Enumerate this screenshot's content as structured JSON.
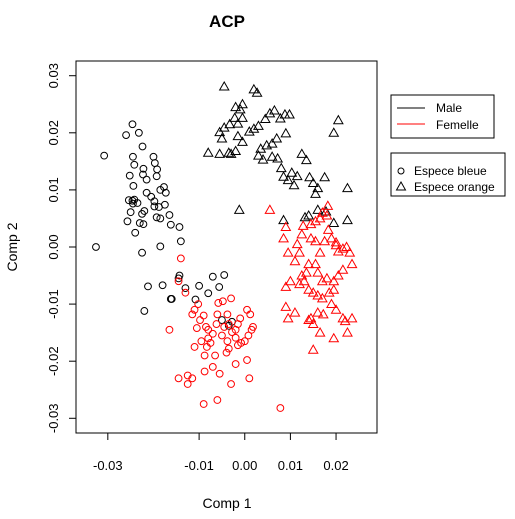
{
  "chart_data": {
    "type": "scatter",
    "title": "ACP",
    "xlabel": "Comp 1",
    "ylabel": "Comp 2",
    "xlim": [
      -0.035,
      0.027
    ],
    "ylim": [
      -0.031,
      0.031
    ],
    "x_ticks": [
      -0.03,
      -0.01,
      0.0,
      0.01,
      0.02
    ],
    "x_tick_labels": [
      "-0.03",
      "-0.01",
      "0.00",
      "0.01",
      "0.02"
    ],
    "y_ticks": [
      -0.03,
      -0.02,
      -0.01,
      0.0,
      0.01,
      0.02,
      0.03
    ],
    "y_tick_labels": [
      "-0.03",
      "-0.02",
      "-0.01",
      "0.00",
      "0.01",
      "0.02",
      "0.03"
    ],
    "grid": false,
    "colors": {
      "Male": "#000000",
      "Femelle": "#ff0000"
    },
    "legends": [
      {
        "placement": "top-right outside",
        "entries": [
          {
            "label": "Male",
            "symbol": "line",
            "color": "#000000"
          },
          {
            "label": "Femelle",
            "symbol": "line",
            "color": "#ff0000"
          }
        ]
      },
      {
        "placement": "right outside",
        "entries": [
          {
            "label": "Espece bleue",
            "symbol": "circle"
          },
          {
            "label": "Espece orange",
            "symbol": "triangle"
          }
        ]
      }
    ],
    "series": [
      {
        "sex": "Male",
        "species": "Espece bleue",
        "color": "#000000",
        "marker": "circle",
        "points": [
          [
            -0.0326,
            -0.0
          ],
          [
            -0.0308,
            0.016
          ],
          [
            -0.026,
            0.0196
          ],
          [
            -0.0246,
            0.0215
          ],
          [
            -0.0224,
            0.0176
          ],
          [
            -0.0232,
            0.02
          ],
          [
            -0.0245,
            0.0158
          ],
          [
            -0.0223,
            0.0127
          ],
          [
            -0.0222,
            0.0137
          ],
          [
            -0.0215,
            0.0118
          ],
          [
            -0.02,
            0.0158
          ],
          [
            -0.0197,
            0.0147
          ],
          [
            -0.0192,
            0.0136
          ],
          [
            -0.0193,
            0.0124
          ],
          [
            -0.0242,
            0.0144
          ],
          [
            -0.0252,
            0.0125
          ],
          [
            -0.0244,
            0.0107
          ],
          [
            -0.0254,
            0.0082
          ],
          [
            -0.0246,
            0.0081
          ],
          [
            -0.0242,
            0.0083
          ],
          [
            -0.0235,
            0.0077
          ],
          [
            -0.0245,
            0.0076
          ],
          [
            -0.025,
            0.0061
          ],
          [
            -0.0257,
            0.0045
          ],
          [
            -0.024,
            0.0025
          ],
          [
            -0.0225,
            0.0058
          ],
          [
            -0.023,
            0.0042
          ],
          [
            -0.0222,
            0.004
          ],
          [
            -0.022,
            0.0063
          ],
          [
            -0.0215,
            0.0095
          ],
          [
            -0.0205,
            0.0088
          ],
          [
            -0.0198,
            0.008
          ],
          [
            -0.0188,
            0.007
          ],
          [
            -0.0198,
            0.0071
          ],
          [
            -0.0185,
            0.01
          ],
          [
            -0.0177,
            0.0105
          ],
          [
            -0.0173,
            0.0095
          ],
          [
            -0.0175,
            0.0074
          ],
          [
            -0.0185,
            0.005
          ],
          [
            -0.0193,
            0.0052
          ],
          [
            -0.0162,
            0.0039
          ],
          [
            -0.0165,
            0.0056
          ],
          [
            -0.0143,
            0.0035
          ],
          [
            -0.014,
            0.001
          ],
          [
            -0.0185,
            0.0001
          ],
          [
            -0.0225,
            -0.001
          ],
          [
            -0.018,
            -0.0067
          ],
          [
            -0.0212,
            -0.0069
          ],
          [
            -0.022,
            -0.0112
          ],
          [
            -0.0162,
            -0.0091
          ],
          [
            -0.016,
            -0.0091
          ],
          [
            -0.0145,
            -0.0055
          ],
          [
            -0.0143,
            -0.005
          ],
          [
            -0.013,
            -0.0072
          ],
          [
            -0.0108,
            -0.0092
          ],
          [
            -0.01,
            -0.0068
          ],
          [
            -0.008,
            -0.0081
          ],
          [
            -0.007,
            -0.0052
          ],
          [
            -0.0056,
            -0.007
          ],
          [
            -0.0045,
            -0.0049
          ],
          [
            -0.005,
            -0.0128
          ],
          [
            -0.0035,
            -0.0138
          ],
          [
            -0.0028,
            -0.0131
          ]
        ]
      },
      {
        "sex": "Male",
        "species": "Espece orange",
        "color": "#000000",
        "marker": "triangle",
        "points": [
          [
            -0.0045,
            0.0281
          ],
          [
            0.002,
            0.0276
          ],
          [
            0.0027,
            0.027
          ],
          [
            -0.0005,
            0.025
          ],
          [
            -0.001,
            0.0241
          ],
          [
            -0.002,
            0.0245
          ],
          [
            -0.0005,
            0.0226
          ],
          [
            -0.0015,
            0.0216
          ],
          [
            -0.0022,
            0.0226
          ],
          [
            -0.0033,
            0.0215
          ],
          [
            -0.0045,
            0.0209
          ],
          [
            -0.0055,
            0.0201
          ],
          [
            -0.005,
            0.019
          ],
          [
            -0.0015,
            0.0194
          ],
          [
            -0.0005,
            0.0184
          ],
          [
            -0.002,
            0.0168
          ],
          [
            -0.003,
            0.0163
          ],
          [
            -0.0035,
            0.0165
          ],
          [
            -0.0055,
            0.0163
          ],
          [
            -0.008,
            0.0165
          ],
          [
            0.001,
            0.0202
          ],
          [
            0.002,
            0.0207
          ],
          [
            0.003,
            0.0212
          ],
          [
            0.0045,
            0.0224
          ],
          [
            0.0055,
            0.0234
          ],
          [
            0.0065,
            0.0239
          ],
          [
            0.0078,
            0.0225
          ],
          [
            0.0088,
            0.0232
          ],
          [
            0.0098,
            0.0232
          ],
          [
            0.009,
            0.0199
          ],
          [
            0.007,
            0.019
          ],
          [
            0.006,
            0.0181
          ],
          [
            0.0048,
            0.0178
          ],
          [
            0.0035,
            0.0172
          ],
          [
            0.003,
            0.016
          ],
          [
            0.004,
            0.0153
          ],
          [
            0.006,
            0.0158
          ],
          [
            0.0072,
            0.0155
          ],
          [
            0.008,
            0.0138
          ],
          [
            0.0085,
            0.0123
          ],
          [
            0.0095,
            0.0117
          ],
          [
            0.0103,
            0.013
          ],
          [
            0.0108,
            0.0108
          ],
          [
            0.0115,
            0.0124
          ],
          [
            0.0125,
            0.0163
          ],
          [
            0.0135,
            0.0152
          ],
          [
            0.0142,
            0.0122
          ],
          [
            0.015,
            0.0112
          ],
          [
            0.0155,
            0.0093
          ],
          [
            0.016,
            0.0103
          ],
          [
            0.0175,
            0.0122
          ],
          [
            0.0195,
            0.02
          ],
          [
            0.0205,
            0.0222
          ],
          [
            0.0225,
            0.0103
          ],
          [
            0.0225,
            0.0047
          ],
          [
            0.0195,
            0.0042
          ],
          [
            0.0178,
            0.0062
          ],
          [
            0.016,
            0.0065
          ],
          [
            0.014,
            0.0055
          ],
          [
            0.0132,
            0.0052
          ],
          [
            0.0085,
            0.0047
          ],
          [
            -0.0012,
            0.0065
          ]
        ]
      },
      {
        "sex": "Femelle",
        "species": "Espece bleue",
        "color": "#ff0000",
        "marker": "circle",
        "points": [
          [
            -0.0165,
            -0.0145
          ],
          [
            -0.014,
            -0.002
          ],
          [
            -0.0145,
            -0.006
          ],
          [
            -0.013,
            -0.008
          ],
          [
            -0.0145,
            -0.023
          ],
          [
            -0.0125,
            -0.0225
          ],
          [
            -0.011,
            -0.011
          ],
          [
            -0.0098,
            -0.0128
          ],
          [
            -0.0105,
            -0.0142
          ],
          [
            -0.0085,
            -0.014
          ],
          [
            -0.008,
            -0.0145
          ],
          [
            -0.008,
            -0.016
          ],
          [
            -0.0083,
            -0.0175
          ],
          [
            -0.0088,
            -0.019
          ],
          [
            -0.0075,
            -0.0168
          ],
          [
            -0.007,
            -0.0152
          ],
          [
            -0.0062,
            -0.0135
          ],
          [
            -0.006,
            -0.0118
          ],
          [
            -0.0058,
            -0.0098
          ],
          [
            -0.0048,
            -0.0095
          ],
          [
            -0.003,
            -0.009
          ],
          [
            -0.0038,
            -0.0118
          ],
          [
            -0.0045,
            -0.014
          ],
          [
            -0.005,
            -0.0155
          ],
          [
            -0.0038,
            -0.0165
          ],
          [
            -0.0035,
            -0.0135
          ],
          [
            -0.0028,
            -0.0149
          ],
          [
            -0.002,
            -0.0159
          ],
          [
            -0.0015,
            -0.0172
          ],
          [
            -0.0008,
            -0.0168
          ],
          [
            0.0,
            -0.0165
          ],
          [
            0.0008,
            -0.0155
          ],
          [
            0.0015,
            -0.0145
          ],
          [
            0.0018,
            -0.014
          ],
          [
            0.0012,
            -0.0118
          ],
          [
            0.0005,
            -0.011
          ],
          [
            -0.0015,
            -0.0135
          ],
          [
            -0.002,
            -0.0145
          ],
          [
            -0.004,
            -0.0185
          ],
          [
            -0.0065,
            -0.019
          ],
          [
            -0.0088,
            -0.0218
          ],
          [
            -0.0115,
            -0.023
          ],
          [
            -0.0125,
            -0.024
          ],
          [
            -0.009,
            -0.0275
          ],
          [
            -0.006,
            -0.0268
          ],
          [
            -0.003,
            -0.024
          ],
          [
            -0.002,
            -0.0205
          ],
          [
            0.0005,
            -0.0198
          ],
          [
            0.001,
            -0.023
          ],
          [
            -0.009,
            -0.012
          ],
          [
            -0.0115,
            -0.0118
          ],
          [
            -0.0095,
            -0.0165
          ],
          [
            -0.011,
            -0.0175
          ],
          [
            0.0078,
            -0.0282
          ],
          [
            -0.0035,
            -0.0178
          ],
          [
            -0.0055,
            -0.0222
          ],
          [
            -0.007,
            -0.021
          ],
          [
            -0.001,
            -0.0125
          ],
          [
            -0.0102,
            -0.01
          ]
        ]
      },
      {
        "sex": "Femelle",
        "species": "Espece orange",
        "color": "#ff0000",
        "marker": "triangle",
        "points": [
          [
            0.0055,
            0.0065
          ],
          [
            0.009,
            0.0035
          ],
          [
            0.0085,
            0.0015
          ],
          [
            0.0095,
            -0.001
          ],
          [
            0.011,
            -0.0025
          ],
          [
            0.012,
            -0.001
          ],
          [
            0.0115,
            0.0005
          ],
          [
            0.0125,
            0.0022
          ],
          [
            0.0128,
            0.0037
          ],
          [
            0.0145,
            0.004
          ],
          [
            0.0155,
            0.0045
          ],
          [
            0.0165,
            0.005
          ],
          [
            0.017,
            0.006
          ],
          [
            0.0182,
            0.0072
          ],
          [
            0.018,
            0.0055
          ],
          [
            0.0183,
            0.003
          ],
          [
            0.019,
            0.0015
          ],
          [
            0.02,
            0.0008
          ],
          [
            0.02,
            0.0003
          ],
          [
            0.0205,
            -0.0008
          ],
          [
            0.0215,
            -0.0003
          ],
          [
            0.0223,
            0.0
          ],
          [
            0.023,
            -0.001
          ],
          [
            0.0235,
            -0.003
          ],
          [
            0.0215,
            -0.004
          ],
          [
            0.0205,
            -0.005
          ],
          [
            0.0195,
            -0.006
          ],
          [
            0.0195,
            -0.0075
          ],
          [
            0.0185,
            -0.008
          ],
          [
            0.018,
            -0.0055
          ],
          [
            0.017,
            -0.006
          ],
          [
            0.016,
            -0.0045
          ],
          [
            0.0155,
            -0.003
          ],
          [
            0.0165,
            -0.001
          ],
          [
            0.0155,
            0.001
          ],
          [
            0.0145,
            0.0015
          ],
          [
            0.014,
            -0.003
          ],
          [
            0.0135,
            -0.0045
          ],
          [
            0.013,
            -0.006
          ],
          [
            0.014,
            -0.0075
          ],
          [
            0.015,
            -0.008
          ],
          [
            0.016,
            -0.0085
          ],
          [
            0.017,
            -0.009
          ],
          [
            0.0172,
            -0.0118
          ],
          [
            0.016,
            -0.0115
          ],
          [
            0.0145,
            -0.0125
          ],
          [
            0.014,
            -0.0128
          ],
          [
            0.015,
            -0.0135
          ],
          [
            0.0165,
            -0.015
          ],
          [
            0.015,
            -0.018
          ],
          [
            0.011,
            -0.0115
          ],
          [
            0.01,
            -0.006
          ],
          [
            0.009,
            -0.007
          ],
          [
            0.009,
            -0.0105
          ],
          [
            0.0095,
            -0.0125
          ],
          [
            0.019,
            -0.01
          ],
          [
            0.02,
            -0.011
          ],
          [
            0.0215,
            -0.0125
          ],
          [
            0.022,
            -0.013
          ],
          [
            0.0235,
            -0.0125
          ],
          [
            0.0225,
            -0.015
          ],
          [
            0.0195,
            -0.016
          ],
          [
            0.012,
            -0.0065
          ],
          [
            0.0125,
            -0.005
          ],
          [
            0.0175,
            0.001
          ]
        ]
      }
    ]
  }
}
